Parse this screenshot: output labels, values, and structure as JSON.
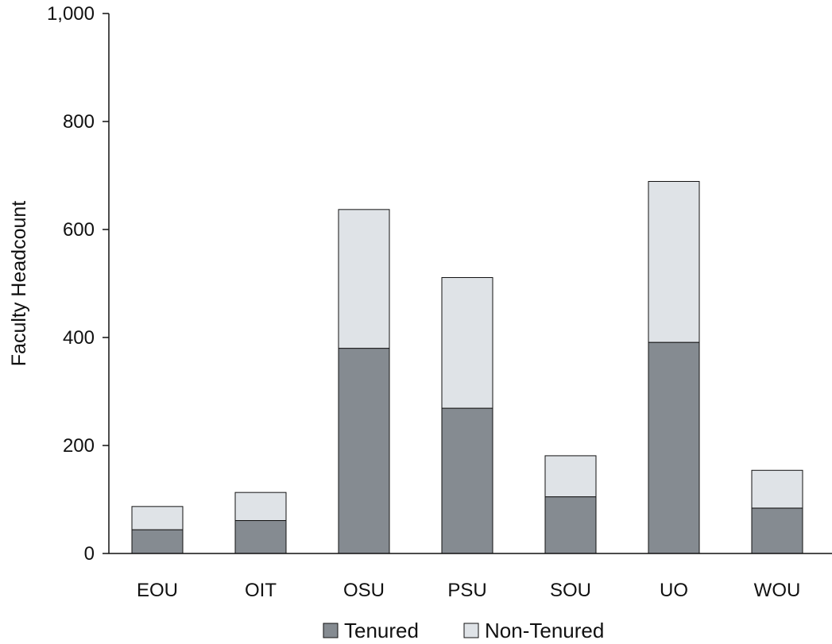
{
  "chart_data": {
    "type": "bar",
    "stacked": true,
    "title": "",
    "xlabel": "",
    "ylabel": "Faculty Headcount",
    "ylim": [
      0,
      1000
    ],
    "yticks": [
      0,
      200,
      400,
      600,
      800,
      1000
    ],
    "ytick_labels": [
      "0",
      "200",
      "400",
      "600",
      "800",
      "1,000"
    ],
    "grid": false,
    "legend_position": "bottom",
    "categories": [
      "EOU",
      "OIT",
      "OSU",
      "PSU",
      "SOU",
      "UO",
      "WOU"
    ],
    "series": [
      {
        "name": "Tenured",
        "color": "#858b91",
        "values": [
          44,
          61,
          380,
          269,
          105,
          391,
          84
        ]
      },
      {
        "name": "Non-Tenured",
        "color": "#dfe3e7",
        "values": [
          43,
          52,
          257,
          242,
          76,
          298,
          70
        ]
      }
    ]
  }
}
